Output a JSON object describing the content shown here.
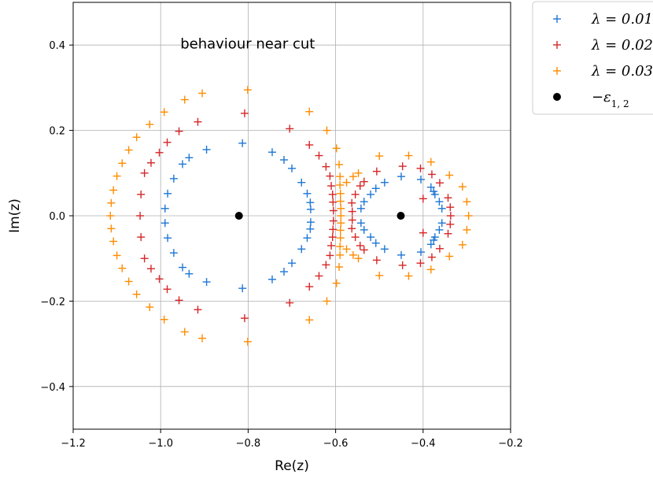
{
  "chart_data": {
    "type": "scatter",
    "annotation": "behaviour near cut",
    "xlabel": "Re(z)",
    "ylabel": "Im(z)",
    "xlim": [
      -1.2,
      -0.2
    ],
    "ylim": [
      -0.5,
      0.5
    ],
    "xticks": [
      -1.2,
      -1.0,
      -0.8,
      -0.6,
      -0.4,
      -0.2
    ],
    "xtick_labels": [
      "−1.2",
      "−1.0",
      "−0.8",
      "−0.6",
      "−0.4",
      "−0.2"
    ],
    "yticks": [
      -0.4,
      -0.2,
      0.0,
      0.2,
      0.4
    ],
    "ytick_labels": [
      "−0.4",
      "−0.2",
      "0.0",
      "0.2",
      "0.4"
    ],
    "grid": true,
    "legend_position": "outside-top-right",
    "series": [
      {
        "name": "λ = 0.01",
        "marker": "plus",
        "color": "#1f77d4",
        "points": [
          [
            -0.99,
            0.017
          ],
          [
            -0.99,
            -0.017
          ],
          [
            -0.984,
            0.052
          ],
          [
            -0.984,
            -0.052
          ],
          [
            -0.97,
            0.087
          ],
          [
            -0.97,
            -0.087
          ],
          [
            -0.95,
            0.121
          ],
          [
            -0.95,
            -0.121
          ],
          [
            -0.935,
            0.136
          ],
          [
            -0.935,
            -0.136
          ],
          [
            -0.895,
            0.155
          ],
          [
            -0.895,
            -0.155
          ],
          [
            -0.813,
            0.17
          ],
          [
            -0.813,
            -0.17
          ],
          [
            -0.745,
            0.149
          ],
          [
            -0.745,
            -0.149
          ],
          [
            -0.718,
            0.131
          ],
          [
            -0.718,
            -0.131
          ],
          [
            -0.7,
            0.111
          ],
          [
            -0.7,
            -0.111
          ],
          [
            -0.678,
            0.078
          ],
          [
            -0.678,
            -0.078
          ],
          [
            -0.665,
            0.052
          ],
          [
            -0.665,
            -0.052
          ],
          [
            -0.658,
            0.031
          ],
          [
            -0.658,
            -0.031
          ],
          [
            -0.657,
            0.015
          ],
          [
            -0.657,
            -0.015
          ],
          [
            -0.542,
            0.017
          ],
          [
            -0.542,
            -0.017
          ],
          [
            -0.535,
            0.033
          ],
          [
            -0.535,
            -0.033
          ],
          [
            -0.52,
            0.05
          ],
          [
            -0.52,
            -0.05
          ],
          [
            -0.508,
            0.064
          ],
          [
            -0.508,
            -0.064
          ],
          [
            -0.488,
            0.078
          ],
          [
            -0.488,
            -0.078
          ],
          [
            -0.45,
            0.092
          ],
          [
            -0.45,
            -0.092
          ],
          [
            -0.405,
            0.085
          ],
          [
            -0.405,
            -0.085
          ],
          [
            -0.382,
            0.067
          ],
          [
            -0.382,
            -0.067
          ],
          [
            -0.373,
            0.05
          ],
          [
            -0.373,
            -0.05
          ],
          [
            -0.363,
            0.033
          ],
          [
            -0.363,
            -0.033
          ],
          [
            -0.357,
            0.017
          ],
          [
            -0.357,
            -0.017
          ],
          [
            -0.376,
            0.057
          ],
          [
            -0.376,
            -0.057
          ]
        ]
      },
      {
        "name": "λ = 0.02",
        "marker": "plus",
        "color": "#d62728",
        "points": [
          [
            -1.047,
            0.0
          ],
          [
            -1.045,
            0.05
          ],
          [
            -1.045,
            -0.05
          ],
          [
            -1.037,
            0.1
          ],
          [
            -1.037,
            -0.1
          ],
          [
            -1.022,
            0.124
          ],
          [
            -1.022,
            -0.124
          ],
          [
            -1.003,
            0.148
          ],
          [
            -1.003,
            -0.148
          ],
          [
            -0.985,
            0.172
          ],
          [
            -0.985,
            -0.172
          ],
          [
            -0.958,
            0.198
          ],
          [
            -0.958,
            -0.198
          ],
          [
            -0.915,
            0.22
          ],
          [
            -0.915,
            -0.22
          ],
          [
            -0.808,
            0.24
          ],
          [
            -0.808,
            -0.24
          ],
          [
            -0.705,
            0.204
          ],
          [
            -0.705,
            -0.204
          ],
          [
            -0.66,
            0.166
          ],
          [
            -0.66,
            -0.166
          ],
          [
            -0.638,
            0.141
          ],
          [
            -0.638,
            -0.141
          ],
          [
            -0.622,
            0.115
          ],
          [
            -0.622,
            -0.115
          ],
          [
            -0.613,
            0.093
          ],
          [
            -0.613,
            -0.093
          ],
          [
            -0.61,
            0.07
          ],
          [
            -0.61,
            -0.07
          ],
          [
            -0.607,
            0.05
          ],
          [
            -0.607,
            -0.05
          ],
          [
            -0.606,
            0.032
          ],
          [
            -0.606,
            -0.032
          ],
          [
            -0.605,
            0.012
          ],
          [
            -0.605,
            -0.012
          ],
          [
            -0.562,
            0.01
          ],
          [
            -0.562,
            -0.01
          ],
          [
            -0.563,
            0.03
          ],
          [
            -0.563,
            -0.03
          ],
          [
            -0.555,
            0.05
          ],
          [
            -0.555,
            -0.05
          ],
          [
            -0.544,
            0.07
          ],
          [
            -0.544,
            -0.07
          ],
          [
            -0.535,
            0.08
          ],
          [
            -0.535,
            -0.08
          ],
          [
            -0.506,
            0.104
          ],
          [
            -0.506,
            -0.104
          ],
          [
            -0.447,
            0.116
          ],
          [
            -0.447,
            -0.116
          ],
          [
            -0.406,
            0.111
          ],
          [
            -0.406,
            -0.111
          ],
          [
            -0.38,
            0.097
          ],
          [
            -0.38,
            -0.097
          ],
          [
            -0.362,
            0.077
          ],
          [
            -0.362,
            -0.077
          ],
          [
            -0.343,
            0.042
          ],
          [
            -0.343,
            -0.042
          ],
          [
            -0.338,
            0.02
          ],
          [
            -0.338,
            -0.02
          ],
          [
            -0.337,
            0.0
          ],
          [
            -0.4,
            0.04
          ],
          [
            -0.4,
            -0.04
          ]
        ]
      },
      {
        "name": "λ = 0.03",
        "marker": "plus",
        "color": "#ff8c00",
        "points": [
          [
            -1.115,
            0.0
          ],
          [
            -1.113,
            0.03
          ],
          [
            -1.113,
            -0.03
          ],
          [
            -1.108,
            0.06
          ],
          [
            -1.108,
            -0.06
          ],
          [
            -1.1,
            0.093
          ],
          [
            -1.1,
            -0.093
          ],
          [
            -1.088,
            0.123
          ],
          [
            -1.088,
            -0.123
          ],
          [
            -1.073,
            0.154
          ],
          [
            -1.073,
            -0.154
          ],
          [
            -1.055,
            0.184
          ],
          [
            -1.055,
            -0.184
          ],
          [
            -1.025,
            0.214
          ],
          [
            -1.025,
            -0.214
          ],
          [
            -0.992,
            0.243
          ],
          [
            -0.992,
            -0.243
          ],
          [
            -0.945,
            0.272
          ],
          [
            -0.945,
            -0.272
          ],
          [
            -0.905,
            0.287
          ],
          [
            -0.905,
            -0.287
          ],
          [
            -0.801,
            0.295
          ],
          [
            -0.801,
            -0.295
          ],
          [
            -0.66,
            0.244
          ],
          [
            -0.66,
            -0.244
          ],
          [
            -0.62,
            0.2
          ],
          [
            -0.62,
            -0.2
          ],
          [
            -0.598,
            0.158
          ],
          [
            -0.598,
            -0.158
          ],
          [
            -0.592,
            0.12
          ],
          [
            -0.592,
            -0.12
          ],
          [
            -0.59,
            0.092
          ],
          [
            -0.59,
            -0.092
          ],
          [
            -0.59,
            0.072
          ],
          [
            -0.59,
            -0.072
          ],
          [
            -0.589,
            0.052
          ],
          [
            -0.589,
            -0.052
          ],
          [
            -0.589,
            0.034
          ],
          [
            -0.589,
            -0.034
          ],
          [
            -0.588,
            0.017
          ],
          [
            -0.588,
            -0.017
          ],
          [
            -0.588,
            0.0
          ],
          [
            -0.575,
            0.078
          ],
          [
            -0.575,
            -0.078
          ],
          [
            -0.56,
            0.092
          ],
          [
            -0.56,
            -0.092
          ],
          [
            -0.548,
            0.1
          ],
          [
            -0.548,
            -0.1
          ],
          [
            -0.5,
            0.14
          ],
          [
            -0.5,
            -0.14
          ],
          [
            -0.433,
            0.141
          ],
          [
            -0.433,
            -0.141
          ],
          [
            -0.382,
            0.126
          ],
          [
            -0.382,
            -0.126
          ],
          [
            -0.34,
            0.095
          ],
          [
            -0.34,
            -0.095
          ],
          [
            -0.31,
            0.068
          ],
          [
            -0.31,
            -0.068
          ],
          [
            -0.3,
            0.033
          ],
          [
            -0.3,
            -0.033
          ],
          [
            -0.296,
            0.0
          ]
        ]
      },
      {
        "name": "−ε",
        "name_subscript": "1, 2",
        "marker": "dot",
        "color": "#000000",
        "points": [
          [
            -0.821,
            0.0
          ],
          [
            -0.451,
            0.0
          ]
        ]
      }
    ]
  }
}
